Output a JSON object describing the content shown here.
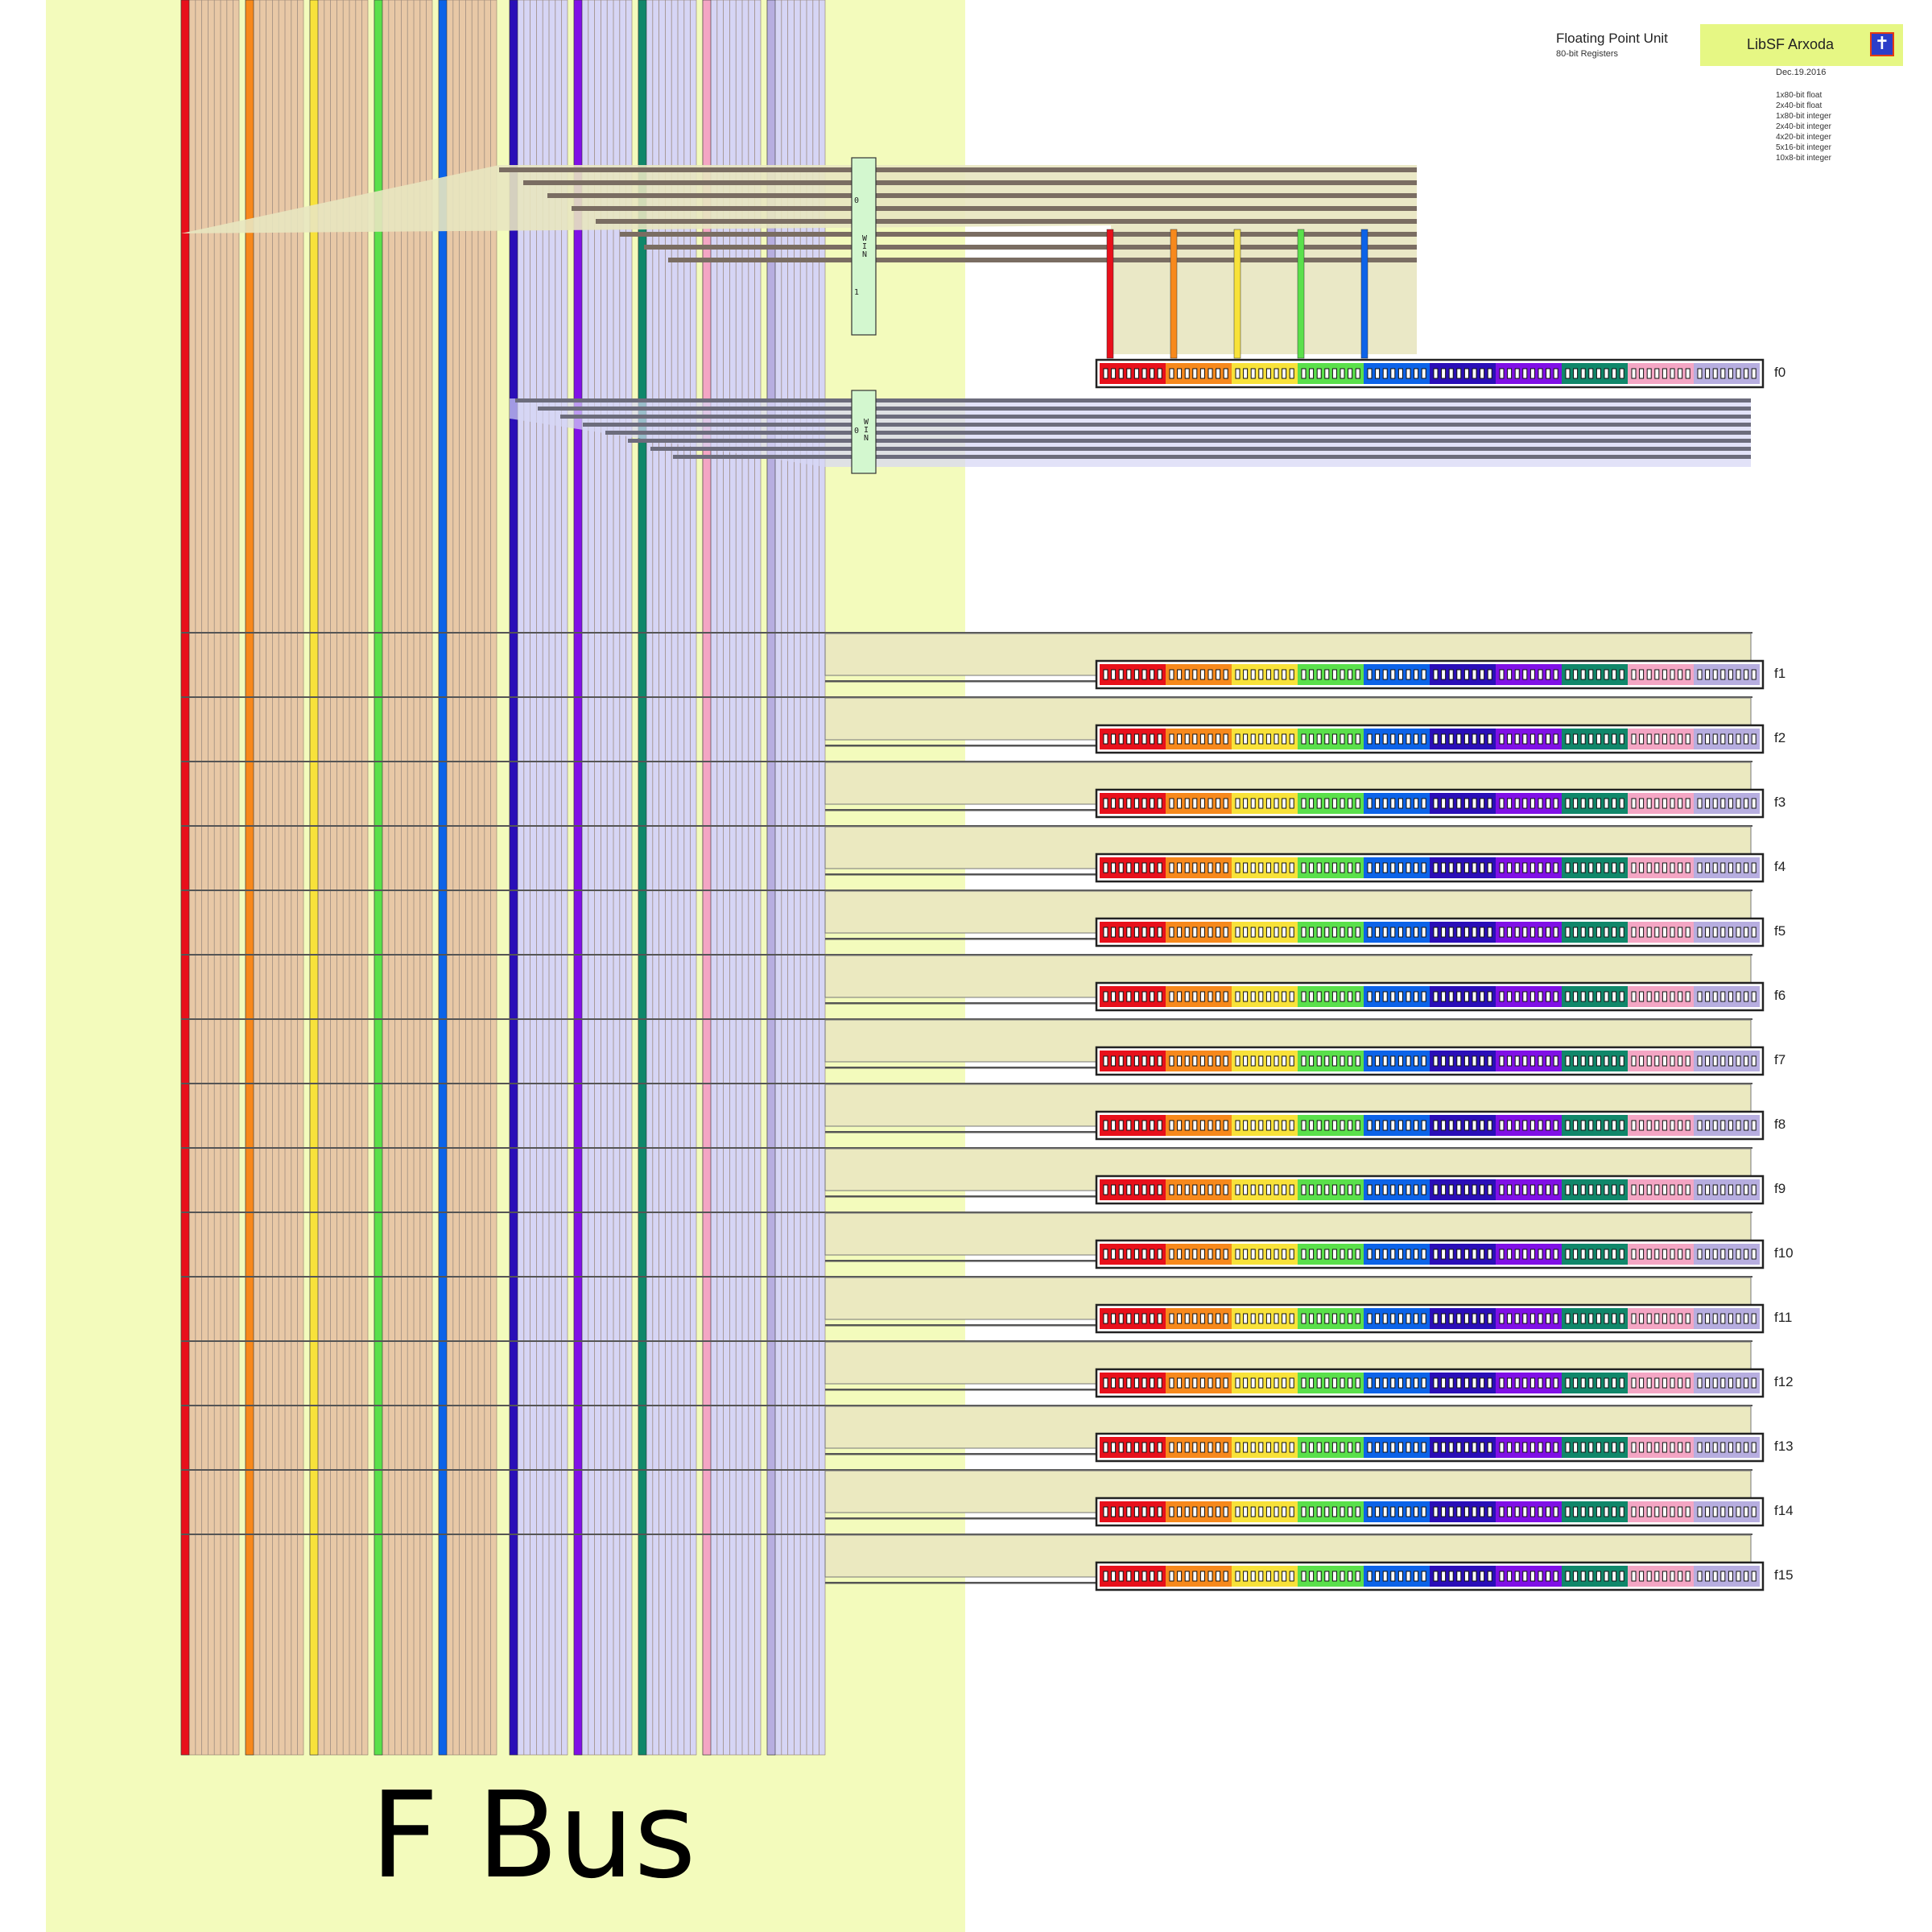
{
  "title": "Floating Point Unit",
  "subtitle": "80-bit Registers",
  "brand": {
    "name": "LibSF Arxoda",
    "logo": "cross-logo-icon"
  },
  "date": "Dec.19.2016",
  "formats": [
    "1x80-bit float",
    "2x40-bit float",
    "1x80-bit integer",
    "2x40-bit integer",
    "4x20-bit integer",
    "5x16-bit integer",
    "10x8-bit integer"
  ],
  "bus_label": "F Bus",
  "registers": [
    "f0",
    "f1",
    "f2",
    "f3",
    "f4",
    "f5",
    "f6",
    "f7",
    "f8",
    "f9",
    "f10",
    "f11",
    "f12",
    "f13",
    "f14",
    "f15"
  ],
  "mux_upper": {
    "labels": [
      "0",
      "1"
    ],
    "letters": [
      "W",
      "I",
      "N"
    ]
  },
  "mux_lower": {
    "labels": [
      "0"
    ],
    "letters": [
      "W",
      "I",
      "N"
    ]
  },
  "colors": {
    "bus_background": "#f3fbbc",
    "register_segments": [
      "#e8101b",
      "#f7891c",
      "#f8e23a",
      "#5ae04b",
      "#0c63e8",
      "#2a0eb8",
      "#8010e6",
      "#10876a",
      "#f4a6c4",
      "#b7aee0"
    ],
    "bus_low_group": "#e8c8a6",
    "bus_high_group": "#d6d5f5"
  }
}
